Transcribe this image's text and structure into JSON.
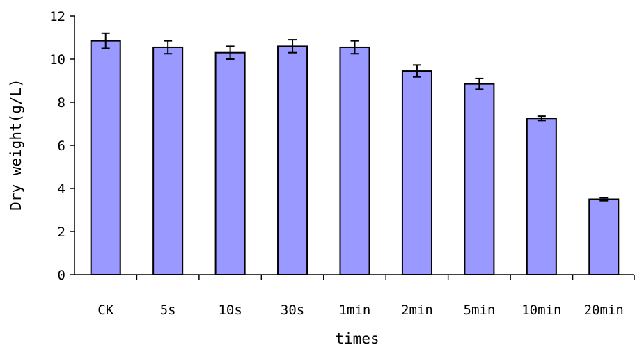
{
  "chart_data": {
    "type": "bar",
    "title": "",
    "xlabel": "times",
    "ylabel": "Dry weight(g/L)",
    "categories": [
      "CK",
      "5s",
      "10s",
      "30s",
      "1min",
      "2min",
      "5min",
      "10min",
      "20min"
    ],
    "values": [
      10.85,
      10.55,
      10.3,
      10.6,
      10.55,
      9.45,
      8.85,
      7.25,
      3.5
    ],
    "errors": [
      0.35,
      0.3,
      0.3,
      0.3,
      0.3,
      0.28,
      0.25,
      0.1,
      0.07
    ],
    "ylim": [
      0,
      12
    ],
    "yticks": [
      0,
      2,
      4,
      6,
      8,
      10,
      12
    ],
    "grid": false,
    "legend": "none",
    "bar_color": "#9999ff"
  }
}
